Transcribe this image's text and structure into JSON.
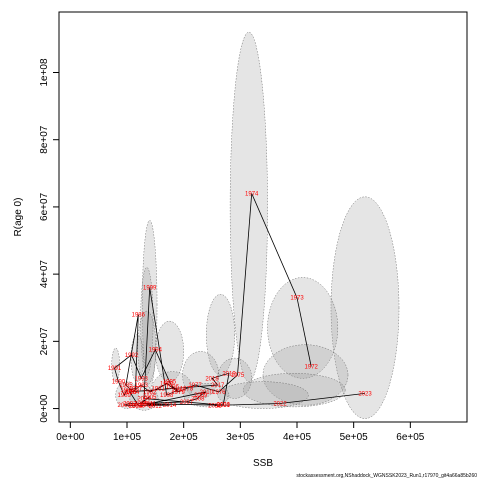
{
  "chart_data": {
    "type": "scatter",
    "xlabel": "SSB",
    "ylabel": "R(age 0)",
    "xlim": [
      -20000,
      700000
    ],
    "ylim": [
      -4000000,
      118000000
    ],
    "x_ticks": [
      0,
      100000,
      200000,
      300000,
      400000,
      500000,
      600000
    ],
    "x_tick_labels": [
      "0e+00",
      "1e+05",
      "2e+05",
      "3e+05",
      "4e+05",
      "5e+05",
      "6e+05"
    ],
    "y_ticks": [
      0,
      20000000,
      40000000,
      60000000,
      80000000,
      100000000
    ],
    "y_tick_labels": [
      "0e+00",
      "2e+07",
      "4e+07",
      "6e+07",
      "8e+07",
      "1e+08"
    ],
    "ellipses": [
      {
        "cx": 315000,
        "cy": 60000000,
        "rx": 33000,
        "ry": 52000000
      },
      {
        "cx": 520000,
        "cy": 30000000,
        "rx": 60000,
        "ry": 33000000
      },
      {
        "cx": 410000,
        "cy": 24000000,
        "rx": 62000,
        "ry": 15000000
      },
      {
        "cx": 140000,
        "cy": 31000000,
        "rx": 13000,
        "ry": 25000000
      },
      {
        "cx": 135000,
        "cy": 26000000,
        "rx": 11000,
        "ry": 16000000
      },
      {
        "cx": 135000,
        "cy": 18000000,
        "rx": 16000,
        "ry": 11000000
      },
      {
        "cx": 265000,
        "cy": 22000000,
        "rx": 25000,
        "ry": 12000000
      },
      {
        "cx": 415000,
        "cy": 10000000,
        "rx": 75000,
        "ry": 9000000
      },
      {
        "cx": 395000,
        "cy": 5500000,
        "rx": 90000,
        "ry": 5000000
      },
      {
        "cx": 290000,
        "cy": 9000000,
        "rx": 30000,
        "ry": 6000000
      },
      {
        "cx": 175000,
        "cy": 17000000,
        "rx": 25000,
        "ry": 9000000
      },
      {
        "cx": 118000,
        "cy": 15000000,
        "rx": 11000,
        "ry": 7000000
      },
      {
        "cx": 80000,
        "cy": 13000000,
        "rx": 7000,
        "ry": 5000000
      },
      {
        "cx": 230000,
        "cy": 10000000,
        "rx": 32000,
        "ry": 7000000
      },
      {
        "cx": 340000,
        "cy": 4000000,
        "rx": 80000,
        "ry": 4000000
      },
      {
        "cx": 180000,
        "cy": 6000000,
        "rx": 35000,
        "ry": 5000000
      },
      {
        "cx": 100000,
        "cy": 4000000,
        "rx": 20000,
        "ry": 4000000
      },
      {
        "cx": 130000,
        "cy": 3000000,
        "rx": 25000,
        "ry": 3500000
      },
      {
        "cx": 240000,
        "cy": 4000000,
        "rx": 40000,
        "ry": 3500000
      }
    ],
    "points": [
      {
        "year": "1972",
        "x": 425000,
        "y": 12500000
      },
      {
        "year": "1973",
        "x": 400000,
        "y": 33000000
      },
      {
        "year": "1974",
        "x": 320000,
        "y": 64000000
      },
      {
        "year": "1975",
        "x": 295000,
        "y": 10000000
      },
      {
        "year": "1976",
        "x": 262000,
        "y": 5000000
      },
      {
        "year": "1977",
        "x": 220000,
        "y": 7000000
      },
      {
        "year": "1978",
        "x": 205000,
        "y": 6000000
      },
      {
        "year": "1979",
        "x": 190000,
        "y": 5000000
      },
      {
        "year": "1980",
        "x": 170000,
        "y": 7500000
      },
      {
        "year": "1981",
        "x": 155000,
        "y": 6000000
      },
      {
        "year": "1982",
        "x": 140000,
        "y": 5000000
      },
      {
        "year": "1983",
        "x": 125000,
        "y": 7000000
      },
      {
        "year": "1984",
        "x": 110000,
        "y": 5000000
      },
      {
        "year": "1985",
        "x": 98000,
        "y": 7000000
      },
      {
        "year": "1986",
        "x": 120000,
        "y": 28000000
      },
      {
        "year": "1987",
        "x": 115000,
        "y": 6000000
      },
      {
        "year": "1988",
        "x": 100000,
        "y": 5500000
      },
      {
        "year": "1989",
        "x": 95000,
        "y": 4000000
      },
      {
        "year": "1990",
        "x": 85000,
        "y": 8000000
      },
      {
        "year": "1991",
        "x": 78000,
        "y": 12000000
      },
      {
        "year": "1992",
        "x": 108000,
        "y": 16000000
      },
      {
        "year": "1993",
        "x": 125000,
        "y": 9000000
      },
      {
        "year": "1994",
        "x": 150000,
        "y": 17500000
      },
      {
        "year": "1995",
        "x": 175000,
        "y": 8000000
      },
      {
        "year": "1996",
        "x": 180000,
        "y": 6500000
      },
      {
        "year": "1997",
        "x": 190000,
        "y": 5500000
      },
      {
        "year": "1998",
        "x": 170000,
        "y": 4000000
      },
      {
        "year": "1999",
        "x": 140000,
        "y": 36000000
      },
      {
        "year": "2000",
        "x": 130000,
        "y": 3000000
      },
      {
        "year": "2001",
        "x": 270000,
        "y": 1000000
      },
      {
        "year": "2002",
        "x": 105000,
        "y": 1500000
      },
      {
        "year": "2003",
        "x": 95000,
        "y": 1000000
      },
      {
        "year": "2004",
        "x": 115000,
        "y": 800000
      },
      {
        "year": "2005",
        "x": 140000,
        "y": 3500000
      },
      {
        "year": "2006",
        "x": 125000,
        "y": 1500000
      },
      {
        "year": "2007",
        "x": 205000,
        "y": 2000000
      },
      {
        "year": "2008",
        "x": 225000,
        "y": 3000000
      },
      {
        "year": "2009",
        "x": 230000,
        "y": 4000000
      },
      {
        "year": "2010",
        "x": 240000,
        "y": 5000000
      },
      {
        "year": "2011",
        "x": 140000,
        "y": 1500000
      },
      {
        "year": "2012",
        "x": 150000,
        "y": 800000
      },
      {
        "year": "2013",
        "x": 135000,
        "y": 1200000
      },
      {
        "year": "2014",
        "x": 175000,
        "y": 1000000
      },
      {
        "year": "2015",
        "x": 120000,
        "y": 900000
      },
      {
        "year": "2016",
        "x": 105000,
        "y": 5000000
      },
      {
        "year": "2017",
        "x": 260000,
        "y": 7000000
      },
      {
        "year": "2018",
        "x": 250000,
        "y": 9000000
      },
      {
        "year": "2019",
        "x": 280000,
        "y": 10500000
      },
      {
        "year": "2020",
        "x": 270000,
        "y": 1200000
      },
      {
        "year": "2021",
        "x": 255000,
        "y": 900000
      },
      {
        "year": "2022",
        "x": 370000,
        "y": 1500000
      },
      {
        "year": "2023",
        "x": 520000,
        "y": 4500000
      }
    ],
    "footer_text": "stockassessment.org,NShaddock_WGNSSK2023_Run1,r17970_git4a66a85b260"
  }
}
